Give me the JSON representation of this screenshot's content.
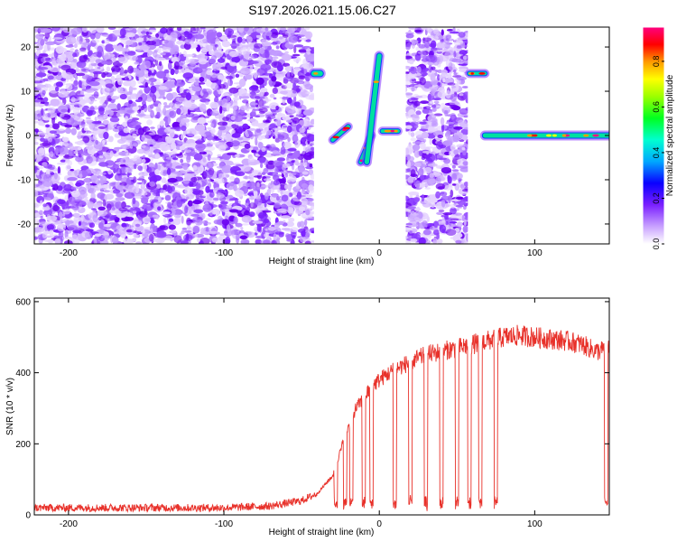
{
  "figure": {
    "title": "S197.2026.021.15.06.C27"
  },
  "chart_data": [
    {
      "type": "heatmap",
      "xlabel": "Height of straight line (km)",
      "ylabel": "Frequency (Hz)",
      "xlim": [
        -222,
        148
      ],
      "ylim": [
        -24.5,
        24.5
      ],
      "xticks": [
        -200,
        -100,
        0,
        100
      ],
      "yticks": [
        -20,
        -10,
        0,
        10,
        20
      ],
      "gaps_km": [
        [
          -42,
          -22
        ],
        [
          -2,
          7
        ],
        [
          12,
          17
        ],
        [
          57,
          65
        ]
      ],
      "noise_regions_km": [
        [
          -222,
          -42
        ],
        [
          17,
          57
        ]
      ],
      "features": [
        {
          "name": "burst",
          "x": [
            -42,
            -38
          ],
          "freq": 14
        },
        {
          "name": "chirp-a",
          "x": [
            -30,
            -20
          ],
          "freq": [
            -1,
            2
          ]
        },
        {
          "name": "chirp-b",
          "x": [
            -12,
            -5
          ],
          "freq": [
            -6,
            0
          ]
        },
        {
          "name": "rising-track",
          "x": [
            -8,
            0
          ],
          "freq": [
            -6,
            18
          ]
        },
        {
          "name": "tone-a",
          "x": [
            2,
            12
          ],
          "freq": 1
        },
        {
          "name": "tone-b",
          "x": [
            58,
            68
          ],
          "freq": 14
        },
        {
          "name": "tone-c",
          "x": [
            68,
            148
          ],
          "freq": 0
        }
      ],
      "colorbar": {
        "label": "Normalized spectral amplitude",
        "range": [
          0,
          0.95
        ],
        "ticks": [
          "0.0",
          "0.2",
          "0.4",
          "0.6",
          "0.8"
        ]
      }
    },
    {
      "type": "line",
      "xlabel": "Height of straight line (km)",
      "ylabel": "SNR (10 * v/v)",
      "xlim": [
        -222,
        148
      ],
      "ylim": [
        0,
        610
      ],
      "xticks": [
        -200,
        -100,
        0,
        100
      ],
      "yticks": [
        0,
        200,
        400,
        600
      ],
      "color": "#e8312a",
      "series": [
        {
          "name": "SNR",
          "x": [
            -222,
            -180,
            -140,
            -100,
            -70,
            -50,
            -40,
            -30,
            -25,
            -20,
            -15,
            -10,
            -5,
            0,
            10,
            20,
            30,
            40,
            50,
            60,
            70,
            80,
            90,
            100,
            110,
            120,
            130,
            140,
            148
          ],
          "y": [
            20,
            20,
            20,
            20,
            25,
            40,
            60,
            110,
            180,
            250,
            300,
            330,
            360,
            380,
            410,
            430,
            450,
            460,
            470,
            480,
            490,
            500,
            505,
            500,
            495,
            490,
            480,
            460,
            470
          ]
        }
      ],
      "dropouts_km": [
        -28,
        -22,
        -18,
        -10,
        -5,
        10,
        20,
        30,
        40,
        50,
        58,
        65,
        75,
        146
      ]
    }
  ]
}
